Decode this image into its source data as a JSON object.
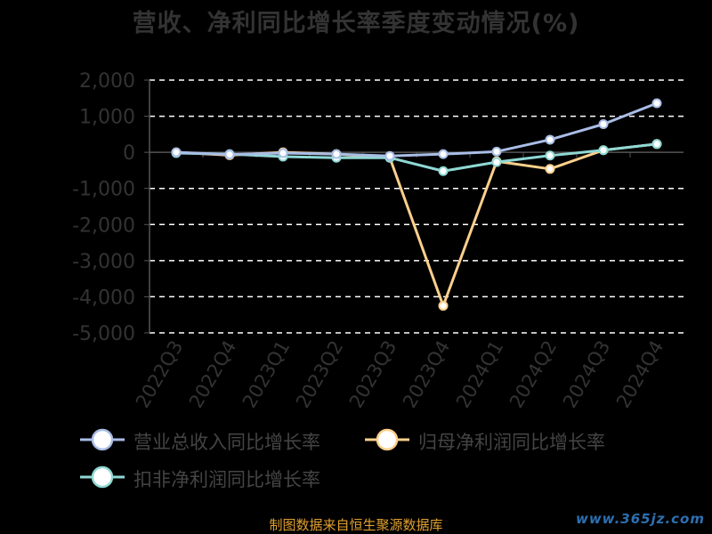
{
  "title": "营收、净利同比增长率季度变动情况(%)",
  "source_note": "制图数据来自恒生聚源数据库",
  "watermark": "www.365jz.com",
  "colors": {
    "background": "#000000",
    "axis": "#555555",
    "tick_label": "#333333",
    "grid": "#ffffff"
  },
  "chart_data": {
    "type": "line",
    "title": "营收、净利同比增长率季度变动情况(%)",
    "categories": [
      "2022Q3",
      "2022Q4",
      "2023Q1",
      "2023Q2",
      "2023Q3",
      "2023Q4",
      "2024Q1",
      "2024Q2",
      "2024Q3",
      "2024Q4"
    ],
    "yticks": [
      "2,000",
      "1,000",
      "0",
      "-1,000",
      "-2,000",
      "-3,000",
      "-4,000",
      "-5,000"
    ],
    "ylim": [
      -5000,
      2000
    ],
    "grid": true,
    "legend_position": "bottom",
    "series": [
      {
        "name": "营业总收入同比增长率",
        "color": "#a9bde6",
        "values": [
          0,
          -60,
          -20,
          -50,
          -100,
          -50,
          20,
          350,
          780,
          1360
        ]
      },
      {
        "name": "归母净利润同比增长率",
        "color": "#fcd08c",
        "values": [
          0,
          -80,
          0,
          -50,
          -150,
          -4250,
          -250,
          -460,
          60,
          230
        ]
      },
      {
        "name": "扣非净利润同比增长率",
        "color": "#8fd8d4",
        "values": [
          -20,
          -50,
          -120,
          -150,
          -150,
          -520,
          -270,
          -90,
          60,
          230
        ]
      }
    ]
  }
}
